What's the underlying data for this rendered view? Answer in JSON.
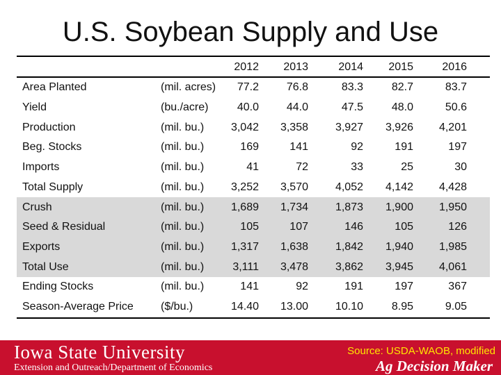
{
  "title": "U.S. Soybean Supply and Use",
  "years": [
    "2012",
    "2013",
    "2014",
    "2015",
    "2016"
  ],
  "rows": [
    {
      "label": "Area Planted",
      "unit": "(mil. acres)",
      "values": [
        "77.2",
        "76.8",
        "83.3",
        "82.7",
        "83.7"
      ],
      "shaded": false
    },
    {
      "label": "Yield",
      "unit": "(bu./acre)",
      "values": [
        "40.0",
        "44.0",
        "47.5",
        "48.0",
        "50.6"
      ],
      "shaded": false
    },
    {
      "label": "Production",
      "unit": "(mil. bu.)",
      "values": [
        "3,042",
        "3,358",
        "3,927",
        "3,926",
        "4,201"
      ],
      "shaded": false
    },
    {
      "label": "Beg. Stocks",
      "unit": "(mil. bu.)",
      "values": [
        "169",
        "141",
        "92",
        "191",
        "197"
      ],
      "shaded": false
    },
    {
      "label": "Imports",
      "unit": "(mil. bu.)",
      "values": [
        "41",
        "72",
        "33",
        "25",
        "30"
      ],
      "shaded": false
    },
    {
      "label": "Total Supply",
      "unit": "(mil. bu.)",
      "values": [
        "3,252",
        "3,570",
        "4,052",
        "4,142",
        "4,428"
      ],
      "shaded": false
    },
    {
      "label": "Crush",
      "unit": "(mil. bu.)",
      "values": [
        "1,689",
        "1,734",
        "1,873",
        "1,900",
        "1,950"
      ],
      "shaded": true
    },
    {
      "label": "Seed & Residual",
      "unit": "(mil. bu.)",
      "values": [
        "105",
        "107",
        "146",
        "105",
        "126"
      ],
      "shaded": true
    },
    {
      "label": "Exports",
      "unit": "(mil. bu.)",
      "values": [
        "1,317",
        "1,638",
        "1,842",
        "1,940",
        "1,985"
      ],
      "shaded": true
    },
    {
      "label": "Total Use",
      "unit": "(mil. bu.)",
      "values": [
        "3,111",
        "3,478",
        "3,862",
        "3,945",
        "4,061"
      ],
      "shaded": true
    },
    {
      "label": "Ending Stocks",
      "unit": "(mil. bu.)",
      "values": [
        "141",
        "92",
        "191",
        "197",
        "367"
      ],
      "shaded": false
    },
    {
      "label": "Season-Average Price",
      "unit": "($/bu.)",
      "values": [
        "14.40",
        "13.00",
        "10.10",
        "8.95",
        "9.05"
      ],
      "shaded": false
    }
  ],
  "footer": {
    "university": "Iowa State University",
    "department": "Extension and Outreach/Department of Economics",
    "source": "Source: USDA-WAOB, modified",
    "brand": "Ag Decision Maker"
  },
  "colors": {
    "footer_bg": "#c8102e",
    "source_text": "#ffe600",
    "shaded_row": "#d9d9d9"
  }
}
